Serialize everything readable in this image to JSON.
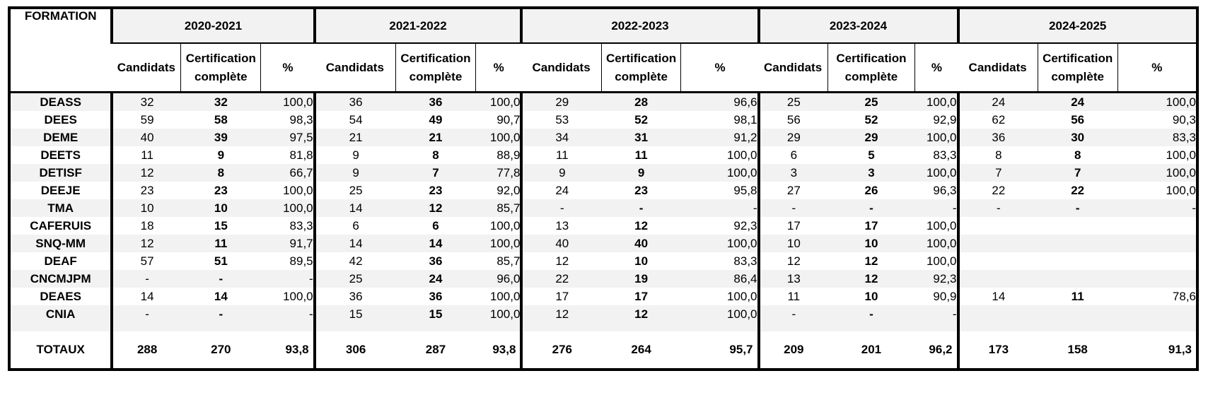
{
  "header": {
    "formation_label": "FORMATION",
    "years": [
      "2020-2021",
      "2021-2022",
      "2022-2023",
      "2023-2024",
      "2024-2025"
    ],
    "col_candidats": "Candidats",
    "col_cert_line1": "Certification",
    "col_cert_line2": "complète",
    "col_pct": "%"
  },
  "rows": [
    {
      "name": "DEASS",
      "cells": [
        [
          "32",
          "32",
          "100,0"
        ],
        [
          "36",
          "36",
          "100,0"
        ],
        [
          "29",
          "28",
          "96,6"
        ],
        [
          "25",
          "25",
          "100,0"
        ],
        [
          "24",
          "24",
          "100,0"
        ]
      ]
    },
    {
      "name": "DEES",
      "cells": [
        [
          "59",
          "58",
          "98,3"
        ],
        [
          "54",
          "49",
          "90,7"
        ],
        [
          "53",
          "52",
          "98,1"
        ],
        [
          "56",
          "52",
          "92,9"
        ],
        [
          "62",
          "56",
          "90,3"
        ]
      ]
    },
    {
      "name": "DEME",
      "cells": [
        [
          "40",
          "39",
          "97,5"
        ],
        [
          "21",
          "21",
          "100,0"
        ],
        [
          "34",
          "31",
          "91,2"
        ],
        [
          "29",
          "29",
          "100,0"
        ],
        [
          "36",
          "30",
          "83,3"
        ]
      ]
    },
    {
      "name": "DEETS",
      "cells": [
        [
          "11",
          "9",
          "81,8"
        ],
        [
          "9",
          "8",
          "88,9"
        ],
        [
          "11",
          "11",
          "100,0"
        ],
        [
          "6",
          "5",
          "83,3"
        ],
        [
          "8",
          "8",
          "100,0"
        ]
      ]
    },
    {
      "name": "DETISF",
      "cells": [
        [
          "12",
          "8",
          "66,7"
        ],
        [
          "9",
          "7",
          "77,8"
        ],
        [
          "9",
          "9",
          "100,0"
        ],
        [
          "3",
          "3",
          "100,0"
        ],
        [
          "7",
          "7",
          "100,0"
        ]
      ]
    },
    {
      "name": "DEEJE",
      "cells": [
        [
          "23",
          "23",
          "100,0"
        ],
        [
          "25",
          "23",
          "92,0"
        ],
        [
          "24",
          "23",
          "95,8"
        ],
        [
          "27",
          "26",
          "96,3"
        ],
        [
          "22",
          "22",
          "100,0"
        ]
      ]
    },
    {
      "name": "TMA",
      "cells": [
        [
          "10",
          "10",
          "100,0"
        ],
        [
          "14",
          "12",
          "85,7"
        ],
        [
          "-",
          "-",
          "-"
        ],
        [
          "-",
          "-",
          "-"
        ],
        [
          "-",
          "-",
          "-"
        ]
      ]
    },
    {
      "name": "CAFERUIS",
      "cells": [
        [
          "18",
          "15",
          "83,3"
        ],
        [
          "6",
          "6",
          "100,0"
        ],
        [
          "13",
          "12",
          "92,3"
        ],
        [
          "17",
          "17",
          "100,0"
        ],
        [
          "",
          "",
          ""
        ]
      ]
    },
    {
      "name": "SNQ-MM",
      "cells": [
        [
          "12",
          "11",
          "91,7"
        ],
        [
          "14",
          "14",
          "100,0"
        ],
        [
          "40",
          "40",
          "100,0"
        ],
        [
          "10",
          "10",
          "100,0"
        ],
        [
          "",
          "",
          ""
        ]
      ]
    },
    {
      "name": "DEAF",
      "cells": [
        [
          "57",
          "51",
          "89,5"
        ],
        [
          "42",
          "36",
          "85,7"
        ],
        [
          "12",
          "10",
          "83,3"
        ],
        [
          "12",
          "12",
          "100,0"
        ],
        [
          "",
          "",
          ""
        ]
      ]
    },
    {
      "name": "CNCMJPM",
      "cells": [
        [
          "-",
          "-",
          "-"
        ],
        [
          "25",
          "24",
          "96,0"
        ],
        [
          "22",
          "19",
          "86,4"
        ],
        [
          "13",
          "12",
          "92,3"
        ],
        [
          "",
          "",
          ""
        ]
      ]
    },
    {
      "name": "DEAES",
      "cells": [
        [
          "14",
          "14",
          "100,0"
        ],
        [
          "36",
          "36",
          "100,0"
        ],
        [
          "17",
          "17",
          "100,0"
        ],
        [
          "11",
          "10",
          "90,9"
        ],
        [
          "14",
          "11",
          "78,6"
        ]
      ]
    },
    {
      "name": "CNIA",
      "cells": [
        [
          "-",
          "-",
          "-"
        ],
        [
          "15",
          "15",
          "100,0"
        ],
        [
          "12",
          "12",
          "100,0"
        ],
        [
          "-",
          "-",
          "-"
        ],
        [
          "",
          "",
          ""
        ]
      ]
    }
  ],
  "totals": {
    "name": "TOTAUX",
    "cells": [
      [
        "288",
        "270",
        "93,8"
      ],
      [
        "306",
        "287",
        "93,8"
      ],
      [
        "276",
        "264",
        "95,7"
      ],
      [
        "209",
        "201",
        "96,2"
      ],
      [
        "173",
        "158",
        "91,3"
      ]
    ]
  }
}
